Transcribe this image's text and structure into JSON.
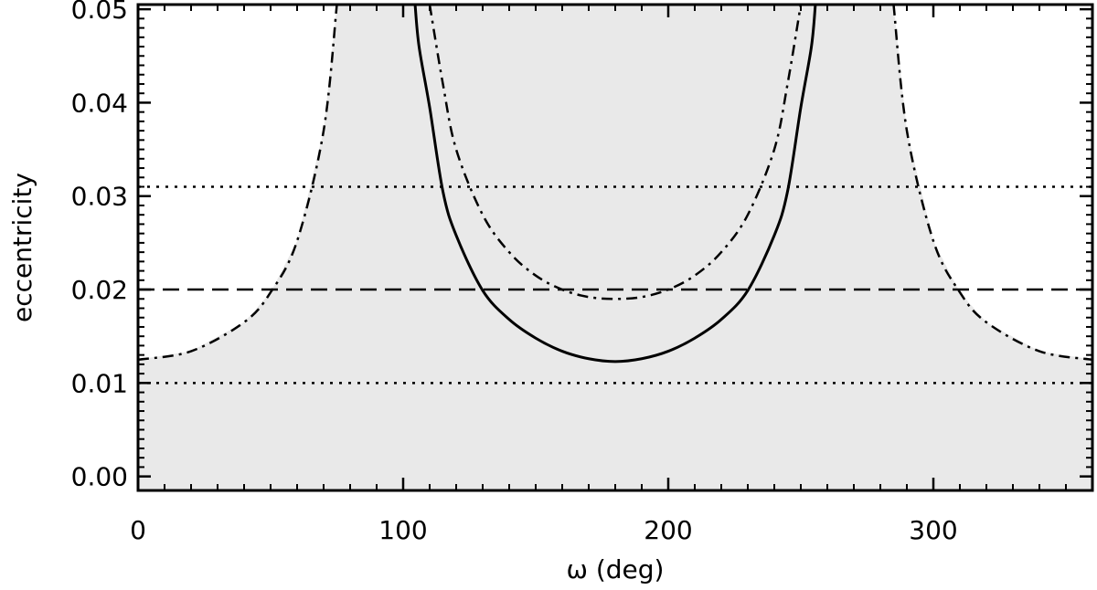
{
  "chart_data": {
    "type": "line",
    "xlabel": "ω  (deg)",
    "ylabel": "eccentricity",
    "xlim": [
      0,
      360
    ],
    "ylim": [
      -0.0015,
      0.0505
    ],
    "xticks": [
      0,
      100,
      200,
      300
    ],
    "xtick_labels": [
      "0",
      "100",
      "200",
      "300"
    ],
    "yticks": [
      0.0,
      0.01,
      0.02,
      0.03,
      0.04,
      0.05
    ],
    "ytick_labels": [
      "0.00",
      "0.01",
      "0.02",
      "0.03",
      "0.04",
      "0.05"
    ],
    "grid": false,
    "shaded_region": {
      "fill": "#e9e9e9",
      "x": [
        0,
        20,
        40,
        50,
        60,
        70,
        75,
        285,
        290,
        300,
        310,
        320,
        340,
        360
      ],
      "upper": [
        0.0125,
        0.0134,
        0.0165,
        0.0197,
        0.0252,
        0.037,
        0.0505,
        0.0505,
        0.037,
        0.0252,
        0.0197,
        0.0165,
        0.0134,
        0.0125
      ]
    },
    "series": [
      {
        "style": "solid",
        "color": "#000000",
        "x": [
          104.5,
          106,
          110,
          115,
          120,
          130,
          140,
          150,
          160,
          170,
          180,
          190,
          200,
          210,
          220,
          230,
          240,
          245,
          250,
          254,
          255.5
        ],
        "y": [
          0.0505,
          0.046,
          0.0395,
          0.0305,
          0.0258,
          0.0199,
          0.0168,
          0.0148,
          0.0134,
          0.0126,
          0.0123,
          0.0126,
          0.0134,
          0.0148,
          0.0168,
          0.0199,
          0.0258,
          0.0305,
          0.0395,
          0.046,
          0.0505
        ]
      },
      {
        "style": "dashdot",
        "color": "#000000",
        "x": [
          0,
          20,
          40,
          50,
          60,
          70,
          75
        ],
        "y": [
          0.0125,
          0.0134,
          0.0165,
          0.0197,
          0.0252,
          0.037,
          0.0505
        ]
      },
      {
        "style": "dashdot",
        "color": "#000000",
        "x": [
          110,
          115,
          120,
          130,
          140,
          150,
          160,
          170,
          180,
          190,
          200,
          210,
          220,
          230,
          240,
          245,
          250
        ],
        "y": [
          0.0505,
          0.042,
          0.035,
          0.028,
          0.024,
          0.0215,
          0.02,
          0.0192,
          0.019,
          0.0192,
          0.02,
          0.0215,
          0.024,
          0.028,
          0.035,
          0.042,
          0.0505
        ]
      },
      {
        "style": "dashdot",
        "color": "#000000",
        "x": [
          285,
          290,
          300,
          310,
          320,
          340,
          360
        ],
        "y": [
          0.0505,
          0.037,
          0.0252,
          0.0197,
          0.0165,
          0.0134,
          0.0125
        ]
      }
    ],
    "reference_lines": [
      {
        "y": 0.031,
        "style": "dotted"
      },
      {
        "y": 0.02,
        "style": "dashed"
      },
      {
        "y": 0.01,
        "style": "dotted"
      }
    ]
  }
}
